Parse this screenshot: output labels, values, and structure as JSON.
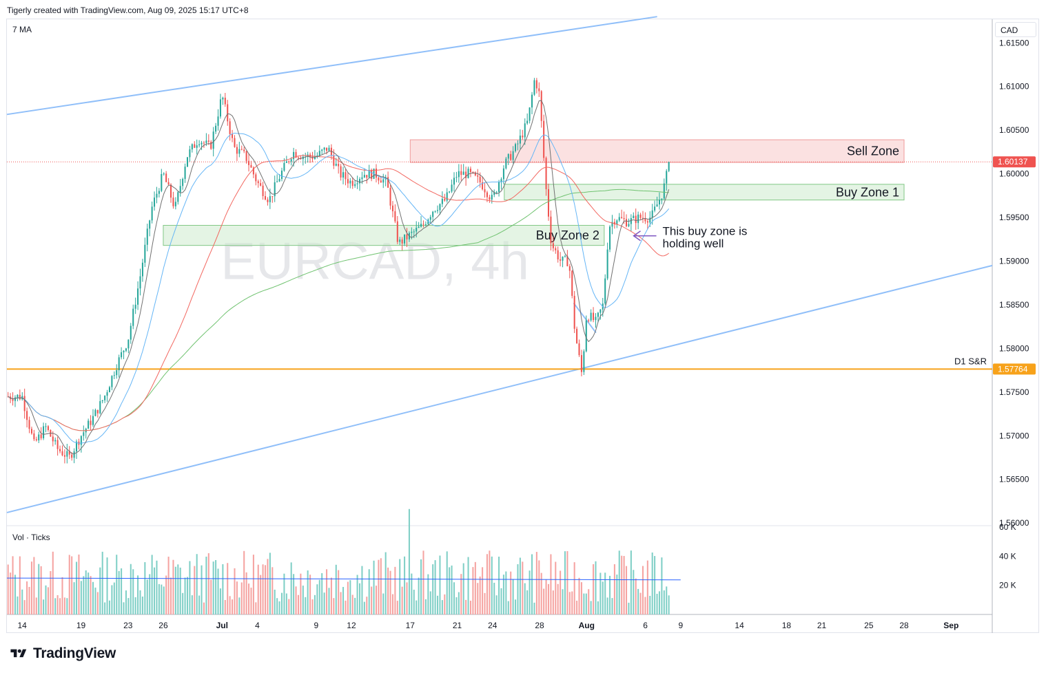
{
  "header": {
    "text": "Tigerly created with TradingView.com, Aug 09, 2025 15:17 UTC+8"
  },
  "indicator_label": "7 MA",
  "volume_label": "Vol · Ticks",
  "currency": "CAD",
  "footer": {
    "logo_text": "TradingView"
  },
  "colors": {
    "up": "#26a69a",
    "down": "#ef5350",
    "channel": "#90bff9",
    "support": "#f7a21b",
    "ma_fast": "#707070",
    "ma_blue": "#64b5f6",
    "ma_red": "#f2665f",
    "ma_green": "#6fc26f",
    "sell_zone": "#f7c9c9",
    "buy_zone": "#cdebcd",
    "arrow": "#7e57c2",
    "vol_ma": "#2962ff"
  },
  "chart_data": {
    "type": "candlestick",
    "symbol_watermark": "EURCAD, 4h",
    "price_ticks": [
      "1.61500",
      "1.61000",
      "1.60500",
      "1.60000",
      "1.59500",
      "1.59000",
      "1.58500",
      "1.58000",
      "1.57500",
      "1.57000",
      "1.56500",
      "1.56000"
    ],
    "price_range": [
      1.5597,
      1.6177
    ],
    "volume_ticks": [
      "60 K",
      "40 K",
      "20 K"
    ],
    "volume_range": [
      0,
      60000
    ],
    "x_ticks": [
      {
        "label": "14",
        "day": 0
      },
      {
        "label": "19",
        "day": 5
      },
      {
        "label": "23",
        "day": 9
      },
      {
        "label": "26",
        "day": 12
      },
      {
        "label": "Jul",
        "day": 17
      },
      {
        "label": "4",
        "day": 20
      },
      {
        "label": "9",
        "day": 25
      },
      {
        "label": "12",
        "day": 28
      },
      {
        "label": "17",
        "day": 33
      },
      {
        "label": "21",
        "day": 37
      },
      {
        "label": "24",
        "day": 40
      },
      {
        "label": "28",
        "day": 44
      },
      {
        "label": "Aug",
        "day": 48
      },
      {
        "label": "6",
        "day": 53
      },
      {
        "label": "9",
        "day": 56
      },
      {
        "label": "14",
        "day": 61
      },
      {
        "label": "18",
        "day": 65
      },
      {
        "label": "21",
        "day": 68
      },
      {
        "label": "25",
        "day": 72
      },
      {
        "label": "28",
        "day": 75
      },
      {
        "label": "Sep",
        "day": 79
      }
    ],
    "x_range_days": [
      -1.3,
      82.5
    ],
    "last_price": "1.60137",
    "support_price": "1.57764",
    "support_label": "D1 S&R",
    "zones": [
      {
        "name": "Sell Zone",
        "low": 1.6013,
        "high": 1.6039,
        "start_day": 33,
        "end_day": 75,
        "kind": "sell"
      },
      {
        "name": "Buy Zone 1",
        "low": 1.597,
        "high": 1.5988,
        "start_day": 41,
        "end_day": 75,
        "kind": "buy"
      },
      {
        "name": "Buy Zone 2",
        "low": 1.5918,
        "high": 1.5941,
        "start_day": 12,
        "end_day": 49.5,
        "kind": "buy"
      }
    ],
    "annotation": {
      "line1": "This buy zone is",
      "line2": "holding well",
      "price": 1.5929,
      "day": 52
    },
    "channel_upper": [
      {
        "day": -1.3,
        "price": 1.6068
      },
      {
        "day": 54,
        "price": 1.618
      }
    ],
    "channel_lower": [
      {
        "day": -1.3,
        "price": 1.5612
      },
      {
        "day": 82.5,
        "price": 1.5895
      }
    ],
    "anchors": [
      [
        0,
        1.5745
      ],
      [
        1,
        1.569
      ],
      [
        2,
        1.571
      ],
      [
        3,
        1.5685
      ],
      [
        4,
        1.5675
      ],
      [
        5,
        1.57
      ],
      [
        6,
        1.572
      ],
      [
        7,
        1.5745
      ],
      [
        8,
        1.578
      ],
      [
        9,
        1.581
      ],
      [
        10,
        1.588
      ],
      [
        11,
        1.596
      ],
      [
        12,
        1.6
      ],
      [
        13,
        1.596
      ],
      [
        14,
        1.602
      ],
      [
        15,
        1.604
      ],
      [
        16,
        1.603
      ],
      [
        17,
        1.609
      ],
      [
        18,
        1.603
      ],
      [
        19,
        1.602
      ],
      [
        20,
        1.599
      ],
      [
        21,
        1.597
      ],
      [
        22,
        1.6
      ],
      [
        23,
        1.6025
      ],
      [
        24,
        1.602
      ],
      [
        25,
        1.602
      ],
      [
        26,
        1.603
      ],
      [
        27,
        1.6
      ],
      [
        28,
        1.599
      ],
      [
        29,
        1.6
      ],
      [
        30,
        1.6
      ],
      [
        31,
        1.599
      ],
      [
        32,
        1.592
      ],
      [
        33,
        1.593
      ],
      [
        34,
        1.594
      ],
      [
        35,
        1.596
      ],
      [
        36,
        1.597
      ],
      [
        37,
        1.6
      ],
      [
        38,
        1.6
      ],
      [
        39,
        1.599
      ],
      [
        40,
        1.597
      ],
      [
        41,
        1.601
      ],
      [
        42,
        1.603
      ],
      [
        43,
        1.606
      ],
      [
        43.6,
        1.611
      ],
      [
        44,
        1.609
      ],
      [
        44.5,
        1.599
      ],
      [
        45,
        1.592
      ],
      [
        45.8,
        1.59
      ],
      [
        46.5,
        1.59
      ],
      [
        47,
        1.582
      ],
      [
        47.6,
        1.577
      ],
      [
        48,
        1.584
      ],
      [
        48.8,
        1.583
      ],
      [
        49.4,
        1.585
      ],
      [
        49.9,
        1.594
      ],
      [
        50.5,
        1.595
      ],
      [
        51.5,
        1.5945
      ],
      [
        52.5,
        1.595
      ],
      [
        53.5,
        1.595
      ],
      [
        54.5,
        1.598
      ],
      [
        55.5,
        1.604
      ],
      [
        56,
        1.6015
      ]
    ],
    "ma_fast_period": 7,
    "volume_avg": 25000
  }
}
